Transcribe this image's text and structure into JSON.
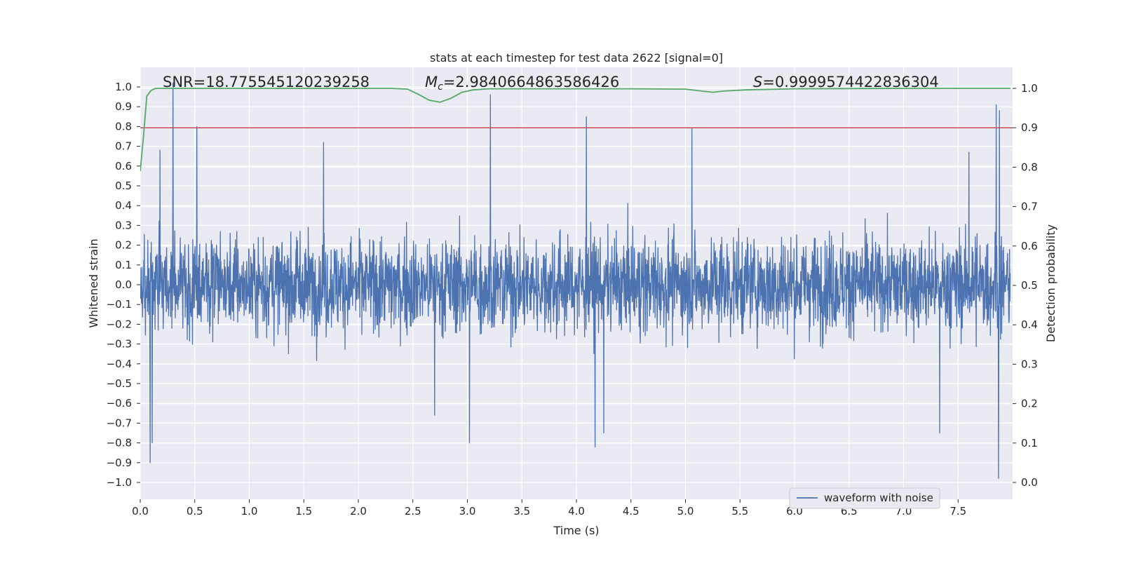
{
  "chart_data": {
    "type": "line",
    "title": "stats at each timestep for test data 2622 [signal=0]",
    "xlabel": "Time (s)",
    "ylabel": "Whitened strain",
    "y2label": "Detection probability",
    "xlim": [
      0.0,
      8.0
    ],
    "ylim": [
      -1.1,
      1.1
    ],
    "y2lim": [
      -0.05,
      1.05
    ],
    "x_ticks": [
      0.0,
      0.5,
      1.0,
      1.5,
      2.0,
      2.5,
      3.0,
      3.5,
      4.0,
      4.5,
      5.0,
      5.5,
      6.0,
      6.5,
      7.0,
      7.5
    ],
    "x_tick_labels": [
      "0.0",
      "0.5",
      "1.0",
      "1.5",
      "2.0",
      "2.5",
      "3.0",
      "3.5",
      "4.0",
      "4.5",
      "5.0",
      "5.5",
      "6.0",
      "6.5",
      "7.0",
      "7.5"
    ],
    "y_ticks": [
      1.0,
      0.9,
      0.8,
      0.7,
      0.6,
      0.5,
      0.4,
      0.3,
      0.2,
      0.1,
      0.0,
      -0.1,
      -0.2,
      -0.3,
      -0.4,
      -0.5,
      -0.6,
      -0.7,
      -0.8,
      -0.9,
      -1.0
    ],
    "y_tick_labels": [
      "1.0",
      "0.9",
      "0.8",
      "0.7",
      "0.6",
      "0.5",
      "0.4",
      "0.3",
      "0.2",
      "0.1",
      "0.0",
      "−0.1",
      "−0.2",
      "−0.3",
      "−0.4",
      "−0.5",
      "−0.6",
      "−0.7",
      "−0.8",
      "−0.9",
      "−1.0"
    ],
    "y2_ticks": [
      1.0,
      0.9,
      0.8,
      0.7,
      0.6,
      0.5,
      0.4,
      0.3,
      0.2,
      0.1,
      0.0
    ],
    "y2_tick_labels": [
      "1.0",
      "0.9",
      "0.8",
      "0.7",
      "0.6",
      "0.5",
      "0.4",
      "0.3",
      "0.2",
      "0.1",
      "0.0"
    ],
    "annotations": {
      "snr": "SNR=18.775545120239258",
      "mc_symbol": "M",
      "mc_sub": "c",
      "mc_value": "=2.9840664863586426",
      "s_symbol": "S",
      "s_value": "=0.9999574422836304"
    },
    "threshold": {
      "y2": 0.9,
      "color": "#c44e52"
    },
    "legend": {
      "label": "waveform with noise",
      "placement": "lower-right"
    },
    "series": [
      {
        "name": "waveform with noise",
        "axis": "left",
        "color": "#4c72b0",
        "generated": "dense noisy trace spanning 0–8 s, typical amplitude ±0.35",
        "noise_seed": 2622,
        "peaks_up": [
          [
            0.3,
            1.02
          ],
          [
            0.52,
            0.8
          ],
          [
            1.68,
            0.72
          ],
          [
            3.21,
            0.96
          ],
          [
            4.09,
            0.85
          ],
          [
            5.06,
            0.79
          ],
          [
            7.85,
            0.91
          ],
          [
            7.88,
            0.88
          ],
          [
            0.18,
            0.68
          ],
          [
            7.6,
            0.67
          ]
        ],
        "peaks_down": [
          [
            0.09,
            -0.9
          ],
          [
            0.11,
            -0.8
          ],
          [
            3.02,
            -0.8
          ],
          [
            4.17,
            -0.82
          ],
          [
            4.25,
            -0.75
          ],
          [
            7.33,
            -0.75
          ],
          [
            7.87,
            -0.98
          ],
          [
            2.7,
            -0.66
          ]
        ]
      },
      {
        "name": "detection probability",
        "axis": "right",
        "color": "#55a868",
        "x": [
          0.0,
          0.03,
          0.06,
          0.1,
          0.14,
          0.5,
          1.0,
          2.0,
          2.3,
          2.45,
          2.55,
          2.65,
          2.75,
          2.85,
          2.95,
          3.05,
          3.2,
          4.0,
          4.5,
          5.0,
          5.15,
          5.25,
          5.35,
          5.55,
          6.0,
          7.0,
          7.98
        ],
        "y": [
          0.79,
          0.88,
          0.98,
          0.995,
          1.0,
          1.0,
          1.0,
          1.0,
          1.0,
          0.998,
          0.985,
          0.97,
          0.965,
          0.975,
          0.99,
          0.996,
          0.999,
          0.999,
          0.999,
          0.998,
          0.993,
          0.99,
          0.993,
          0.996,
          0.999,
          1.0,
          1.0
        ]
      }
    ]
  }
}
